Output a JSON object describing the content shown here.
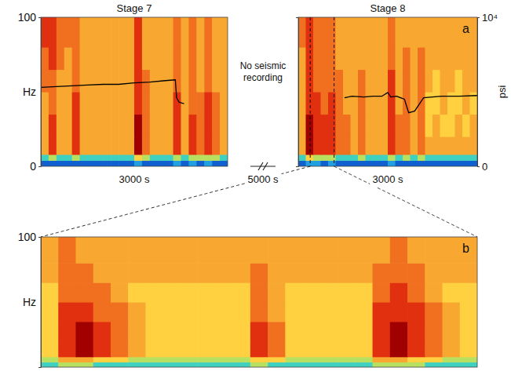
{
  "chart_data": [
    {
      "type": "heatmap",
      "title": "Stage 7",
      "x_label": "3000 s",
      "y_label": "Hz",
      "xlim": [
        0,
        3000
      ],
      "ylim": [
        0,
        100
      ],
      "yticks": [
        0,
        100
      ],
      "y2lim": [
        0,
        10000
      ],
      "tick_labels": "y",
      "zlim": [
        0,
        9
      ],
      "x_bins": [
        0,
        125,
        250,
        375,
        500,
        625,
        750,
        875,
        1000,
        1125,
        1250,
        1375,
        1500,
        1625,
        1750,
        1875,
        2000,
        2125,
        2250,
        2375,
        2500,
        2625,
        2750,
        2875,
        3000
      ],
      "y_bins": [
        0,
        4,
        8,
        20,
        35,
        50,
        65,
        80,
        100
      ],
      "cells": [
        [
          1,
          1,
          1,
          1,
          1,
          1,
          1,
          1,
          1,
          1,
          1,
          1,
          2,
          1,
          1,
          1,
          1,
          2,
          1,
          2,
          1,
          2,
          1,
          1
        ],
        [
          3,
          4,
          3,
          3,
          4,
          3,
          3,
          3,
          3,
          3,
          3,
          3,
          5,
          4,
          3,
          3,
          3,
          4,
          3,
          4,
          4,
          4,
          4,
          3
        ],
        [
          6,
          8,
          6,
          6,
          8,
          6,
          6,
          6,
          6,
          6,
          6,
          6,
          9,
          7,
          6,
          6,
          6,
          8,
          6,
          8,
          7,
          8,
          7,
          6
        ],
        [
          6,
          8,
          6,
          6,
          8,
          6,
          6,
          6,
          6,
          6,
          6,
          6,
          9,
          7,
          6,
          6,
          6,
          8,
          6,
          8,
          7,
          8,
          7,
          6
        ],
        [
          6,
          7,
          6,
          6,
          8,
          6,
          6,
          6,
          6,
          6,
          6,
          6,
          8,
          7,
          6,
          6,
          6,
          8,
          6,
          7,
          7,
          8,
          7,
          6
        ],
        [
          7,
          7,
          6,
          6,
          7,
          6,
          6,
          6,
          6,
          6,
          6,
          6,
          8,
          7,
          6,
          6,
          6,
          7,
          6,
          7,
          6,
          7,
          6,
          6
        ],
        [
          7,
          8,
          7,
          6,
          7,
          6,
          6,
          6,
          6,
          6,
          6,
          6,
          8,
          6,
          6,
          6,
          6,
          7,
          6,
          7,
          6,
          7,
          6,
          6
        ],
        [
          8,
          8,
          7,
          7,
          7,
          6,
          6,
          6,
          6,
          6,
          6,
          6,
          8,
          6,
          6,
          6,
          6,
          7,
          6,
          7,
          6,
          7,
          6,
          6
        ]
      ],
      "series": [
        {
          "type": "line",
          "color": "#000000",
          "axis": "y2",
          "x": [
            0,
            250,
            500,
            750,
            1000,
            1250,
            1500,
            1750,
            2000,
            2160,
            2180,
            2220,
            2300
          ],
          "values": [
            5300,
            5350,
            5400,
            5450,
            5500,
            5500,
            5600,
            5650,
            5750,
            5800,
            4600,
            4300,
            4200
          ]
        }
      ]
    },
    {
      "type": "heatmap",
      "title": "Stage 8",
      "x_label": "3000 s",
      "letter": "a",
      "xlim": [
        0,
        3000
      ],
      "ylim": [
        0,
        100
      ],
      "y2lim": [
        0,
        10000
      ],
      "y2ticks": [
        {
          "value": 10000,
          "label": "10⁴"
        },
        0
      ],
      "y2_label": "psi",
      "zlim": [
        0,
        9
      ],
      "x_bins": [
        0,
        125,
        250,
        375,
        500,
        625,
        750,
        875,
        1000,
        1125,
        1250,
        1375,
        1500,
        1625,
        1750,
        1875,
        2000,
        2125,
        2250,
        2375,
        2500,
        2625,
        2750,
        2875,
        3000
      ],
      "y_bins": [
        0,
        4,
        8,
        20,
        35,
        50,
        65,
        80,
        100
      ],
      "cells": [
        [
          1,
          2,
          2,
          1,
          2,
          1,
          1,
          1,
          1,
          1,
          1,
          1,
          2,
          1,
          1,
          1,
          1,
          1,
          1,
          1,
          1,
          1,
          1,
          1
        ],
        [
          3,
          5,
          4,
          4,
          4,
          3,
          3,
          3,
          4,
          3,
          3,
          3,
          4,
          3,
          4,
          3,
          4,
          3,
          3,
          3,
          3,
          3,
          3,
          3
        ],
        [
          6,
          9,
          8,
          8,
          8,
          7,
          7,
          6,
          7,
          6,
          6,
          6,
          8,
          7,
          7,
          6,
          7,
          6,
          6,
          6,
          6,
          6,
          6,
          6
        ],
        [
          6,
          9,
          8,
          8,
          8,
          7,
          7,
          6,
          7,
          6,
          6,
          6,
          8,
          7,
          7,
          6,
          7,
          5,
          6,
          5,
          5,
          6,
          5,
          6
        ],
        [
          6,
          8,
          8,
          7,
          8,
          7,
          6,
          6,
          7,
          6,
          6,
          6,
          8,
          6,
          7,
          6,
          7,
          5,
          5,
          6,
          5,
          5,
          6,
          5
        ],
        [
          6,
          8,
          7,
          7,
          7,
          7,
          6,
          6,
          7,
          6,
          6,
          6,
          8,
          6,
          7,
          6,
          7,
          6,
          5,
          6,
          6,
          5,
          6,
          6
        ],
        [
          6,
          8,
          7,
          7,
          7,
          6,
          6,
          6,
          6,
          6,
          6,
          6,
          7,
          6,
          7,
          6,
          7,
          6,
          6,
          6,
          6,
          6,
          6,
          6
        ],
        [
          7,
          8,
          7,
          7,
          7,
          6,
          6,
          6,
          6,
          6,
          6,
          6,
          7,
          6,
          6,
          6,
          6,
          6,
          6,
          6,
          6,
          6,
          6,
          6
        ]
      ],
      "series": [
        {
          "type": "line",
          "color": "#000000",
          "axis": "y2",
          "x": [
            775,
            900,
            1100,
            1250,
            1400,
            1500,
            1550,
            1650,
            1780,
            1850,
            1950,
            2050,
            2100,
            2400,
            2700,
            3000
          ],
          "values": [
            4600,
            4700,
            4650,
            4700,
            4700,
            4950,
            4650,
            4700,
            4500,
            3600,
            3700,
            4300,
            4600,
            4700,
            4700,
            4750
          ]
        }
      ]
    },
    {
      "type": "heatmap",
      "y_label": "Hz",
      "letter": "b",
      "xlim": [
        200,
        600
      ],
      "ylim": [
        0,
        100
      ],
      "yticks": [
        100
      ],
      "tick_labels": "y",
      "zlim": [
        0,
        9
      ],
      "x_bins": [
        200,
        216,
        232,
        248,
        264,
        280,
        296,
        312,
        328,
        344,
        360,
        376,
        392,
        408,
        424,
        440,
        456,
        472,
        488,
        504,
        520,
        536,
        552,
        568,
        584,
        600
      ],
      "y_bins": [
        0,
        4,
        8,
        20,
        35,
        50,
        65,
        80,
        100
      ],
      "cells": [
        [
          3,
          4,
          4,
          3,
          3,
          3,
          3,
          3,
          3,
          3,
          3,
          3,
          4,
          3,
          3,
          3,
          3,
          3,
          3,
          4,
          4,
          4,
          3,
          3,
          3
        ],
        [
          4,
          6,
          6,
          5,
          5,
          4,
          4,
          4,
          4,
          4,
          4,
          4,
          5,
          5,
          4,
          4,
          4,
          4,
          4,
          6,
          6,
          5,
          5,
          4,
          4
        ],
        [
          5,
          8,
          9,
          8,
          7,
          6,
          5,
          5,
          5,
          5,
          5,
          5,
          8,
          7,
          5,
          5,
          5,
          5,
          5,
          8,
          9,
          8,
          7,
          6,
          5
        ],
        [
          5,
          8,
          9,
          8,
          7,
          6,
          5,
          5,
          5,
          5,
          5,
          5,
          8,
          7,
          5,
          5,
          5,
          5,
          5,
          8,
          9,
          8,
          7,
          6,
          5
        ],
        [
          5,
          8,
          8,
          7,
          7,
          6,
          5,
          5,
          5,
          5,
          5,
          5,
          7,
          6,
          5,
          5,
          5,
          5,
          5,
          8,
          8,
          8,
          7,
          6,
          5
        ],
        [
          5,
          7,
          7,
          7,
          6,
          5,
          5,
          5,
          5,
          5,
          5,
          5,
          7,
          6,
          5,
          5,
          5,
          5,
          5,
          7,
          8,
          7,
          6,
          5,
          5
        ],
        [
          6,
          7,
          7,
          6,
          6,
          6,
          6,
          6,
          6,
          6,
          6,
          6,
          7,
          6,
          6,
          6,
          6,
          6,
          6,
          7,
          7,
          7,
          6,
          6,
          6
        ],
        [
          6,
          7,
          6,
          6,
          6,
          6,
          6,
          6,
          6,
          6,
          6,
          6,
          6,
          6,
          6,
          6,
          6,
          6,
          6,
          6,
          7,
          6,
          6,
          6,
          6
        ]
      ]
    }
  ],
  "annotations": [
    "No seismic recording",
    "5000 s"
  ]
}
